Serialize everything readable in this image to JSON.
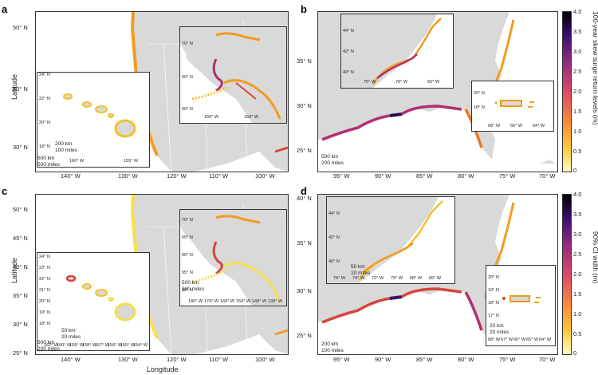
{
  "panels": {
    "a": {
      "label": "a",
      "lat_ticks": [
        "50° N",
        "40° N",
        "30° N"
      ],
      "lon_ticks": [
        "140° W",
        "130° W",
        "120° W",
        "110° W",
        "100° W"
      ],
      "hawaii_inset": {
        "lat": [
          "24° N",
          "22° N",
          "20° N",
          "18° N"
        ],
        "lon": [
          "160° W",
          "155° W"
        ],
        "scale": "200 km\n100 miles"
      },
      "alaska_inset": {
        "lat": [
          "70° N",
          "60° N",
          "50° N"
        ],
        "lon": [
          "160° W",
          "150° W"
        ]
      },
      "main_scale": "500 km\n500 miles"
    },
    "b": {
      "label": "b",
      "lat_ticks": [
        "35° N",
        "30° N",
        "25° N"
      ],
      "lon_ticks": [
        "95° W",
        "90° W",
        "85° W",
        "80° W",
        "75° W",
        "70° W"
      ],
      "ne_inset": {
        "lat": [
          "44° N",
          "42° N",
          "40° N"
        ],
        "lon": [
          "75° W",
          "70° W",
          "65° W"
        ]
      },
      "pr_inset": {
        "lat": [
          "20° N",
          "18° N"
        ],
        "lon": [
          "68° W",
          "66° W",
          "64° W"
        ]
      },
      "main_scale": "500 km\n200 miles"
    },
    "c": {
      "label": "c",
      "lat_ticks": [
        "50° N",
        "45° N",
        "40° N",
        "35° N",
        "30° N",
        "25° N"
      ],
      "lon_ticks": [
        "140° W",
        "130° W",
        "120° W",
        "110° W",
        "100° W"
      ],
      "hawaii_inset": {
        "lat": [
          "24° N",
          "23° N",
          "22° N",
          "21° N",
          "20° N",
          "19° N",
          "18° N"
        ],
        "lon": [
          "161° W",
          "160° W",
          "159° W",
          "158° W",
          "157° W",
          "156° W",
          "155° W",
          "154° W"
        ],
        "scale": "50 km\n20 miles"
      },
      "alaska_inset": {
        "lat": [
          "70° N",
          "65° N",
          "60° N",
          "55° N",
          "50° N"
        ],
        "lon": [
          "180° W",
          "170° W",
          "160° W",
          "150° W",
          "140° W",
          "130° W"
        ],
        "scale": "500 km\n200 miles"
      },
      "main_scale": "500 km\n200 miles"
    },
    "d": {
      "label": "d",
      "lat_ticks": [
        "40° N",
        "35° N",
        "30° N",
        "25° N"
      ],
      "lon_ticks": [
        "95° W",
        "90° W",
        "85° W",
        "80° W",
        "75° W",
        "70° W"
      ],
      "ne_inset": {
        "lat": [
          "44° N",
          "42° N",
          "40° N"
        ],
        "lon": [
          "76° W",
          "74° W",
          "72° W",
          "70° W",
          "68° W",
          "66° W"
        ],
        "scale": "50 km\n10 miles"
      },
      "pr_inset": {
        "lat": [
          "20° N",
          "19° N",
          "18° N",
          "17° N"
        ],
        "lon": [
          "68° W",
          "67° W",
          "66° W",
          "65° W",
          "64° W"
        ],
        "scale": "20 km\n20 miles"
      },
      "main_scale": "200 km\n100 miles"
    }
  },
  "axes": {
    "latitude": "Latitude",
    "longitude": "Longitude"
  },
  "colorbars": {
    "top": {
      "title": "100-year skew surge return levels (m)",
      "ticks": [
        "4.0",
        "3.5",
        "3.0",
        "2.5",
        "2.0",
        "1.5",
        "1.0",
        "0.5",
        "0"
      ]
    },
    "bottom": {
      "title": "90% CI width (m)",
      "ticks": [
        "4.0",
        "3.5",
        "3.0",
        "2.5",
        "2.0",
        "1.5",
        "1.0",
        "0.5",
        "0"
      ]
    }
  },
  "colors": {
    "land": "#d9d9d9",
    "ocean": "#ffffff",
    "low": "#f5e94a",
    "mid": "#f29b1d",
    "high": "#c0306a",
    "max": "#1b0a2e"
  }
}
